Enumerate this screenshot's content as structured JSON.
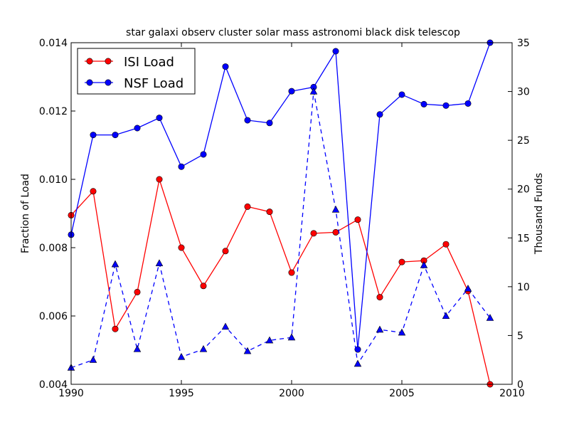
{
  "chart_data": {
    "type": "line",
    "title": "star galaxi observ cluster solar mass astronomi black disk telescop",
    "xlabel": "",
    "ylabel": "Fraction of Load",
    "y2label": "Thousand Funds",
    "xlim": [
      1990,
      2010
    ],
    "ylim": [
      0.004,
      0.014
    ],
    "y2lim": [
      0,
      35
    ],
    "x_ticks": [
      "1990",
      "1995",
      "2000",
      "2005",
      "2010"
    ],
    "y_ticks": [
      "0.004",
      "0.006",
      "0.008",
      "0.010",
      "0.012",
      "0.014"
    ],
    "y2_ticks": [
      "0",
      "5",
      "10",
      "15",
      "20",
      "25",
      "30",
      "35"
    ],
    "legend_position": "top-left",
    "series": [
      {
        "name": "ISI Load",
        "axis": "left",
        "color": "#ff0000",
        "marker": "circle",
        "line": "solid",
        "x": [
          1990,
          1991,
          1992,
          1993,
          1994,
          1995,
          1996,
          1997,
          1998,
          1999,
          2000,
          2001,
          2002,
          2003,
          2004,
          2005,
          2006,
          2007,
          2008,
          2009
        ],
        "values": [
          0.00895,
          0.00965,
          0.00562,
          0.0067,
          0.01,
          0.008,
          0.00688,
          0.0079,
          0.0092,
          0.00905,
          0.00727,
          0.00842,
          0.00845,
          0.00882,
          0.00655,
          0.00758,
          0.00762,
          0.0081,
          0.00673,
          0.004
        ]
      },
      {
        "name": "NSF Load",
        "axis": "left",
        "color": "#0000ff",
        "marker": "circle",
        "line": "solid",
        "x": [
          1990,
          1991,
          1992,
          1993,
          1994,
          1995,
          1996,
          1997,
          1998,
          1999,
          2000,
          2001,
          2002,
          2003,
          2004,
          2005,
          2006,
          2007,
          2008,
          2009
        ],
        "values": [
          0.00838,
          0.0113,
          0.0113,
          0.0115,
          0.0118,
          0.01037,
          0.01073,
          0.0133,
          0.01173,
          0.01165,
          0.01258,
          0.0127,
          0.01375,
          0.00502,
          0.0119,
          0.01248,
          0.0122,
          0.01216,
          0.01222,
          0.014
        ]
      },
      {
        "axis": "right",
        "color": "#0000ff",
        "marker": "triangle",
        "line": "dashed",
        "x": [
          1990,
          1991,
          1992,
          1993,
          1994,
          1995,
          1996,
          1997,
          1998,
          1999,
          2000,
          2001,
          2002,
          2003,
          2004,
          2005,
          2006,
          2007,
          2008,
          2009
        ],
        "values": [
          1.7,
          2.5,
          12.3,
          3.6,
          12.4,
          2.8,
          3.6,
          5.9,
          3.4,
          4.5,
          4.8,
          30.0,
          17.9,
          2.1,
          5.6,
          5.3,
          12.2,
          7.0,
          9.8,
          6.8
        ]
      }
    ]
  }
}
